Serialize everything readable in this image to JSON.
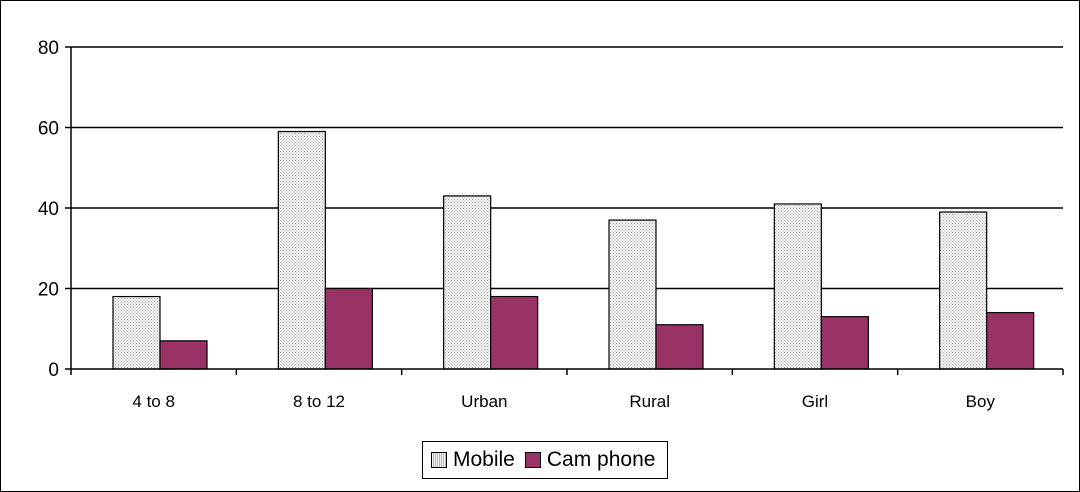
{
  "chart_data": {
    "type": "bar",
    "categories": [
      "4 to 8",
      "8 to 12",
      "Urban",
      "Rural",
      "Girl",
      "Boy"
    ],
    "series": [
      {
        "name": "Mobile",
        "values": [
          18,
          59,
          43,
          37,
          41,
          39
        ],
        "color": "#e6e6e6"
      },
      {
        "name": "Cam phone",
        "values": [
          7,
          20,
          18,
          11,
          13,
          14
        ],
        "color": "#993366"
      }
    ],
    "y_ticks": [
      "0",
      "20",
      "40",
      "60",
      "80"
    ],
    "ylim": [
      0,
      80
    ],
    "grid": true,
    "legend_position": "bottom",
    "title": "",
    "xlabel": "",
    "ylabel": ""
  }
}
